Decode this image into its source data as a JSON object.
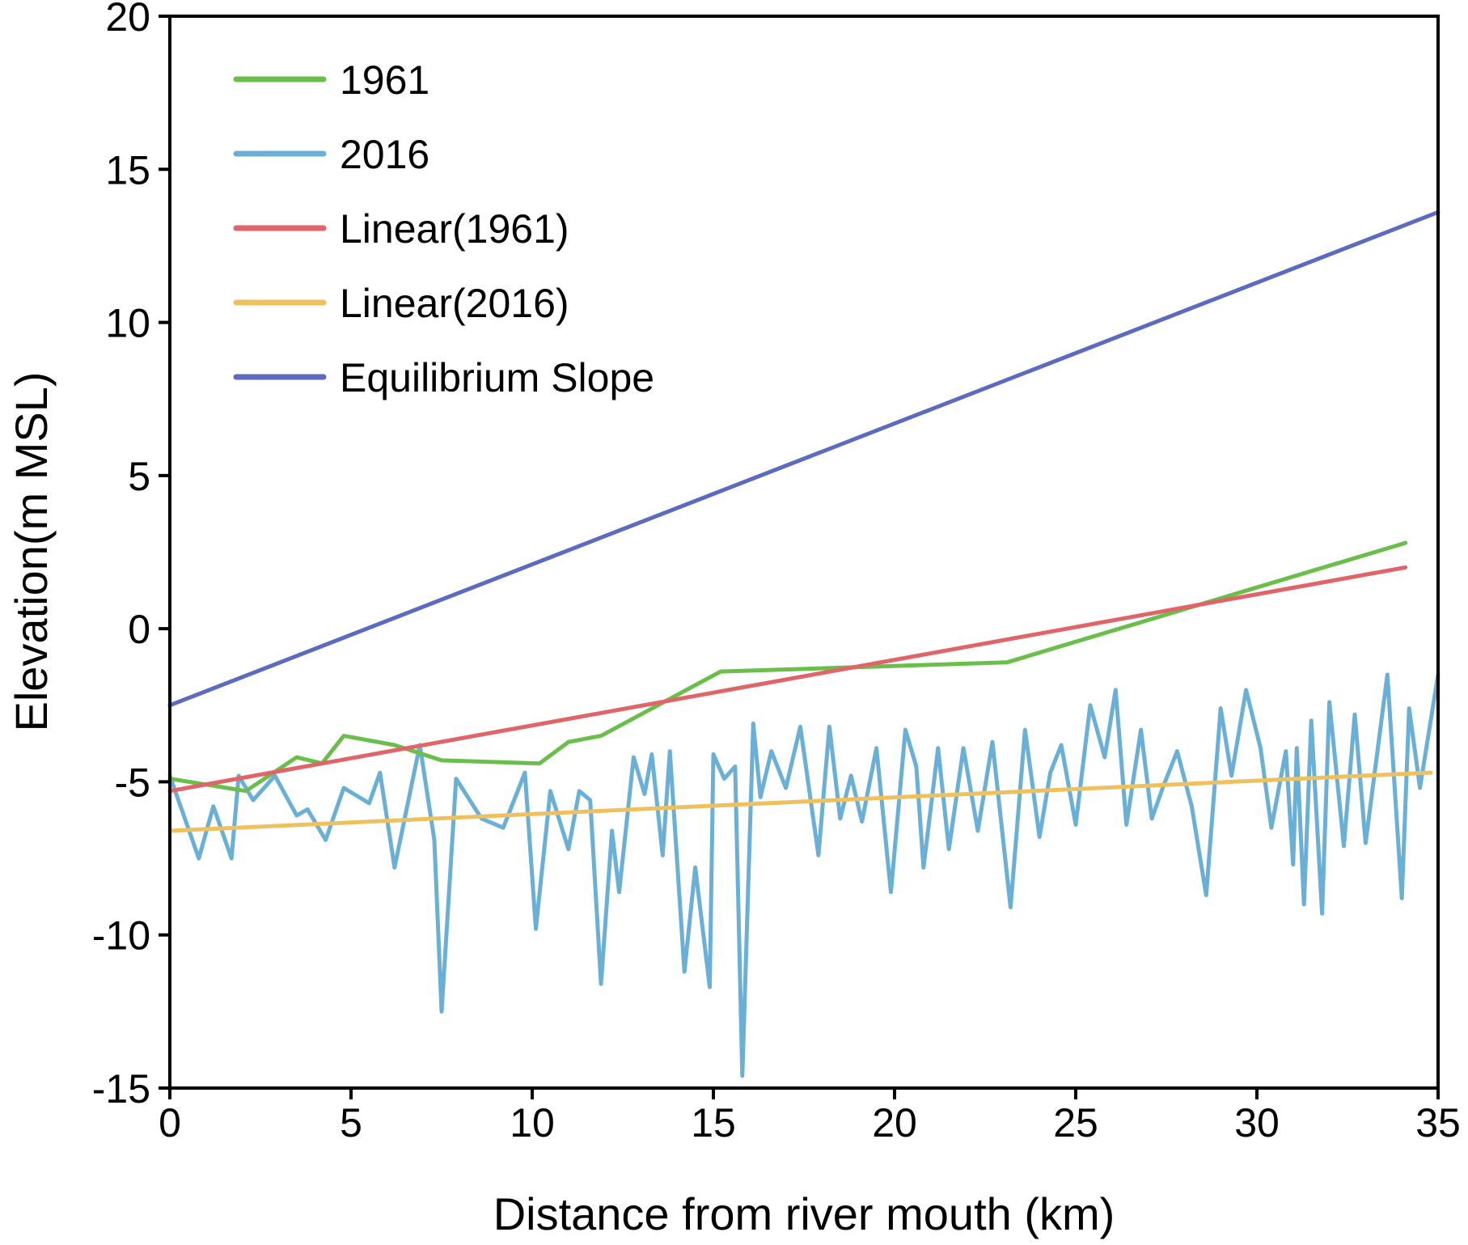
{
  "chart_data": {
    "type": "line",
    "title": "",
    "xlabel": "Distance from river mouth (km)",
    "ylabel": "Elevation(m MSL)",
    "xlim": [
      0,
      35
    ],
    "ylim": [
      -15,
      20
    ],
    "xticks": [
      0,
      5,
      10,
      15,
      20,
      25,
      30,
      35
    ],
    "yticks": [
      -15,
      -10,
      -5,
      0,
      5,
      10,
      15,
      20
    ],
    "xtick_labels": [
      "0",
      "5",
      "10",
      "15",
      "20",
      "25",
      "30",
      "35"
    ],
    "ytick_labels": [
      "-15",
      "-10",
      "-5",
      "0",
      "5",
      "10",
      "15",
      "20"
    ],
    "grid": false,
    "legend_position": "top-left",
    "series": [
      {
        "name": "1961",
        "color": "#6abf4b",
        "x": [
          0,
          2.1,
          3.5,
          4.2,
          4.8,
          6.2,
          7.5,
          10.2,
          11.0,
          11.9,
          15.2,
          23.1,
          34.1
        ],
        "y": [
          -4.9,
          -5.3,
          -4.2,
          -4.4,
          -3.5,
          -3.8,
          -4.3,
          -4.4,
          -3.7,
          -3.5,
          -1.4,
          -1.1,
          2.8
        ]
      },
      {
        "name": "2016",
        "color": "#6aafd6",
        "x": [
          0,
          0.8,
          1.2,
          1.7,
          1.9,
          2.3,
          2.9,
          3.5,
          3.8,
          4.3,
          4.8,
          5.5,
          5.8,
          6.2,
          6.9,
          7.3,
          7.5,
          7.9,
          8.6,
          9.2,
          9.8,
          10.1,
          10.5,
          11.0,
          11.3,
          11.6,
          11.9,
          12.2,
          12.4,
          12.8,
          13.1,
          13.3,
          13.6,
          13.8,
          14.2,
          14.5,
          14.9,
          15.0,
          15.3,
          15.6,
          15.8,
          16.1,
          16.3,
          16.6,
          17.0,
          17.4,
          17.9,
          18.2,
          18.5,
          18.8,
          19.1,
          19.5,
          19.9,
          20.3,
          20.6,
          20.8,
          21.2,
          21.5,
          21.9,
          22.3,
          22.7,
          23.2,
          23.6,
          24.0,
          24.3,
          24.6,
          25.0,
          25.4,
          25.8,
          26.1,
          26.4,
          26.8,
          27.1,
          27.4,
          27.8,
          28.2,
          28.6,
          29.0,
          29.3,
          29.7,
          30.1,
          30.4,
          30.8,
          31.0,
          31.1,
          31.3,
          31.5,
          31.8,
          32.0,
          32.4,
          32.7,
          33.0,
          33.6,
          34.0,
          34.2,
          34.5,
          35.0
        ],
        "y": [
          -4.8,
          -7.5,
          -5.8,
          -7.5,
          -4.8,
          -5.6,
          -4.8,
          -6.1,
          -5.9,
          -6.9,
          -5.2,
          -5.7,
          -4.7,
          -7.8,
          -3.8,
          -6.9,
          -12.5,
          -4.9,
          -6.2,
          -6.5,
          -4.7,
          -9.8,
          -5.3,
          -7.2,
          -5.3,
          -5.6,
          -11.6,
          -6.6,
          -8.6,
          -4.2,
          -5.4,
          -4.1,
          -7.4,
          -4.0,
          -11.2,
          -7.8,
          -11.7,
          -4.1,
          -4.9,
          -4.5,
          -14.6,
          -3.1,
          -5.5,
          -4.0,
          -5.2,
          -3.2,
          -7.4,
          -3.2,
          -6.2,
          -4.8,
          -6.3,
          -3.9,
          -8.6,
          -3.3,
          -4.5,
          -7.8,
          -3.9,
          -7.2,
          -3.9,
          -6.6,
          -3.7,
          -9.1,
          -3.3,
          -6.8,
          -4.7,
          -3.8,
          -6.4,
          -2.5,
          -4.2,
          -2.0,
          -6.4,
          -3.3,
          -6.2,
          -5.2,
          -4.0,
          -5.8,
          -8.7,
          -2.6,
          -4.8,
          -2.0,
          -3.9,
          -6.5,
          -4.0,
          -7.7,
          -3.9,
          -9.0,
          -3.0,
          -9.3,
          -2.4,
          -7.1,
          -2.8,
          -7.0,
          -1.5,
          -8.8,
          -2.6,
          -5.2,
          -1.5
        ]
      },
      {
        "name": "Linear(1961)",
        "color": "#e06468",
        "x": [
          0,
          34.1
        ],
        "y": [
          -5.3,
          2.0
        ]
      },
      {
        "name": "Linear(2016)",
        "color": "#efc15e",
        "x": [
          0,
          34.8
        ],
        "y": [
          -6.6,
          -4.7
        ]
      },
      {
        "name": "Equilibrium Slope",
        "color": "#5c6bbf",
        "x": [
          0,
          35
        ],
        "y": [
          -2.5,
          13.6
        ]
      }
    ]
  }
}
